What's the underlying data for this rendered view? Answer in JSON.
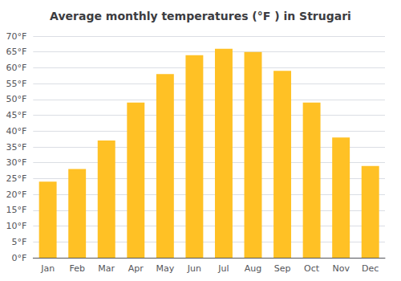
{
  "chart_data": {
    "type": "bar",
    "title": "Average monthly temperatures (°F ) in Strugari",
    "categories": [
      "Jan",
      "Feb",
      "Mar",
      "Apr",
      "May",
      "Jun",
      "Jul",
      "Aug",
      "Sep",
      "Oct",
      "Nov",
      "Dec"
    ],
    "values": [
      24,
      28,
      37,
      49,
      58,
      64,
      66,
      65,
      59,
      49,
      38,
      29
    ],
    "color": "#FFC125",
    "ylim": [
      0,
      70
    ],
    "yticks": [
      {
        "value": 0,
        "label": "0°F"
      },
      {
        "value": 5,
        "label": "5°F"
      },
      {
        "value": 10,
        "label": "10°F"
      },
      {
        "value": 15,
        "label": "15°F"
      },
      {
        "value": 20,
        "label": "20°F"
      },
      {
        "value": 25,
        "label": "25°F"
      },
      {
        "value": 30,
        "label": "30°F"
      },
      {
        "value": 35,
        "label": "35°F"
      },
      {
        "value": 40,
        "label": "40°F"
      },
      {
        "value": 45,
        "label": "45°F"
      },
      {
        "value": 50,
        "label": "50°F"
      },
      {
        "value": 55,
        "label": "55°F"
      },
      {
        "value": 60,
        "label": "60°F"
      },
      {
        "value": 65,
        "label": "65°F"
      },
      {
        "value": 70,
        "label": "70°F"
      }
    ],
    "grid": true
  }
}
